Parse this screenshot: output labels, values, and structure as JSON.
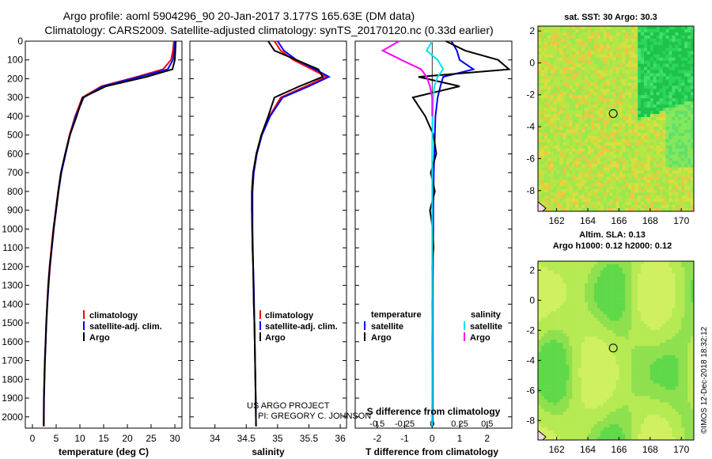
{
  "header": {
    "line1": "Argo profile: aoml 5904296_90 20-Jan-2017 3.177S 165.63E (DM data)",
    "line2": "Climatology: CARS2009. Satellite-adjusted climatology: synTS_20170120.nc (0.33d earlier)"
  },
  "credit": {
    "project": "US ARGO PROJECT",
    "pi": "PI: GREGORY C. JOHNSON",
    "imos": "©IMOS 12-Dec-2018 18:32:12"
  },
  "colors": {
    "climatology": "#ff0000",
    "satellite": "#0000ff",
    "argo": "#000000",
    "s_satellite": "#00e5ee",
    "s_argo": "#ff00ff"
  },
  "chart_data": [
    {
      "id": "temperature",
      "type": "line",
      "xlabel": "temperature (deg C)",
      "ylabel": "",
      "xlim": [
        -1.5,
        31.5
      ],
      "ylim": [
        2060,
        0
      ],
      "xticks": [
        0,
        5,
        10,
        15,
        20,
        25,
        30
      ],
      "xticklabels": [
        "0",
        "5",
        "10",
        "15",
        "20",
        "25",
        "30"
      ],
      "yticks": [
        0,
        100,
        200,
        300,
        400,
        500,
        600,
        700,
        800,
        900,
        1000,
        1100,
        1200,
        1300,
        1400,
        1500,
        1600,
        1700,
        1800,
        1900,
        2000
      ],
      "yticklabels": [
        "0",
        "100",
        "200",
        "300",
        "400",
        "500",
        "600",
        "700",
        "800",
        "900",
        "1000",
        "1100",
        "1200",
        "1300",
        "1400",
        "1500",
        "1600",
        "1700",
        "1800",
        "1900",
        "2000"
      ],
      "legend": {
        "position": "lower-center",
        "entries": [
          "climatology",
          "satellite-adj. clim.",
          "Argo"
        ]
      },
      "series": [
        {
          "name": "climatology",
          "color": "#ff0000",
          "x": [
            29.8,
            29.6,
            29.2,
            27.5,
            22.0,
            14.5,
            10.5,
            9.0,
            7.8,
            6.9,
            6.0,
            5.4,
            4.9,
            4.4,
            4.0,
            3.6,
            3.3,
            3.1,
            2.9,
            2.75,
            2.6,
            2.5,
            2.4,
            2.35
          ],
          "y": [
            0,
            50,
            100,
            150,
            190,
            240,
            300,
            400,
            500,
            600,
            700,
            800,
            900,
            1000,
            1100,
            1200,
            1300,
            1400,
            1500,
            1600,
            1700,
            1800,
            1900,
            2050
          ]
        },
        {
          "name": "satellite-adj. clim.",
          "color": "#0000ff",
          "x": [
            30.0,
            29.9,
            29.6,
            28.5,
            22.5,
            14.8,
            10.8,
            9.1,
            7.9,
            7.0,
            6.1,
            5.5,
            5.0,
            4.5,
            4.1,
            3.7,
            3.4,
            3.15,
            2.95,
            2.8,
            2.65,
            2.55,
            2.45,
            2.4
          ],
          "y": [
            0,
            50,
            100,
            150,
            190,
            240,
            300,
            400,
            500,
            600,
            700,
            800,
            900,
            1000,
            1100,
            1200,
            1300,
            1400,
            1500,
            1600,
            1700,
            1800,
            1900,
            2050
          ]
        },
        {
          "name": "Argo",
          "color": "#000000",
          "x": [
            30.2,
            30.1,
            30.0,
            29.5,
            24.0,
            15.5,
            10.6,
            9.3,
            7.9,
            6.9,
            6.0,
            5.45,
            4.95,
            4.45,
            4.05,
            3.65,
            3.35,
            3.12,
            2.92,
            2.78,
            2.62,
            2.52,
            2.42,
            2.38
          ],
          "y": [
            0,
            50,
            100,
            150,
            190,
            240,
            300,
            400,
            500,
            600,
            700,
            800,
            900,
            1000,
            1100,
            1200,
            1300,
            1400,
            1500,
            1600,
            1700,
            1800,
            1900,
            2050
          ]
        }
      ]
    },
    {
      "id": "salinity",
      "type": "line",
      "xlabel": "salinity",
      "ylabel": "",
      "xlim": [
        33.6,
        36.1
      ],
      "ylim": [
        2060,
        0
      ],
      "xticks": [
        34,
        34.5,
        35,
        35.5,
        36
      ],
      "xticklabels": [
        "34",
        "34.5",
        "35",
        "35.5",
        "36"
      ],
      "yticks": [
        0,
        100,
        200,
        300,
        400,
        500,
        600,
        700,
        800,
        900,
        1000,
        1100,
        1200,
        1300,
        1400,
        1500,
        1600,
        1700,
        1800,
        1900,
        2000
      ],
      "legend": {
        "position": "lower-center",
        "entries": [
          "climatology",
          "satellite-adj. clim.",
          "Argo"
        ]
      },
      "series": [
        {
          "name": "climatology",
          "color": "#ff0000",
          "x": [
            34.95,
            35.05,
            35.25,
            35.55,
            35.78,
            35.45,
            35.05,
            34.87,
            34.74,
            34.66,
            34.61,
            34.59,
            34.59,
            34.595,
            34.6,
            34.61,
            34.615,
            34.62,
            34.63,
            34.635,
            34.64,
            34.645,
            34.65,
            34.655
          ],
          "y": [
            0,
            50,
            100,
            150,
            190,
            240,
            300,
            400,
            500,
            600,
            700,
            800,
            900,
            1000,
            1100,
            1200,
            1300,
            1400,
            1500,
            1600,
            1700,
            1800,
            1900,
            2050
          ]
        },
        {
          "name": "satellite-adj. clim.",
          "color": "#0000ff",
          "x": [
            35.0,
            35.1,
            35.3,
            35.6,
            35.82,
            35.5,
            35.08,
            34.88,
            34.75,
            34.67,
            34.62,
            34.6,
            34.6,
            34.6,
            34.605,
            34.61,
            34.62,
            34.625,
            34.63,
            34.635,
            34.64,
            34.645,
            34.65,
            34.655
          ],
          "y": [
            0,
            50,
            100,
            150,
            190,
            240,
            300,
            400,
            500,
            600,
            700,
            800,
            900,
            1000,
            1100,
            1200,
            1300,
            1400,
            1500,
            1600,
            1700,
            1800,
            1900,
            2050
          ]
        },
        {
          "name": "Argo",
          "color": "#000000",
          "x": [
            34.85,
            34.95,
            35.3,
            35.65,
            35.72,
            35.35,
            34.95,
            34.85,
            34.74,
            34.66,
            34.61,
            34.59,
            34.59,
            34.595,
            34.6,
            34.61,
            34.615,
            34.62,
            34.63,
            34.635,
            34.64,
            34.645,
            34.65,
            34.655
          ],
          "y": [
            0,
            50,
            100,
            150,
            190,
            240,
            300,
            400,
            500,
            600,
            700,
            800,
            900,
            1000,
            1100,
            1200,
            1300,
            1400,
            1500,
            1600,
            1700,
            1800,
            1900,
            2050
          ]
        }
      ]
    },
    {
      "id": "difference",
      "type": "line",
      "xlabel": "T difference from climatology",
      "xlabel_top": "S difference from climatology",
      "xlim": [
        -2.8,
        2.9
      ],
      "ylim": [
        2060,
        0
      ],
      "xticks": [
        -2,
        -1,
        0,
        1,
        2
      ],
      "xticklabels": [
        "-2",
        "-1",
        "0",
        "1",
        "2"
      ],
      "s_ticks": [
        -0.5,
        -0.25,
        0,
        0.25,
        0.5
      ],
      "s_ticklabels": [
        "-0.5",
        "-0.25",
        "0",
        "0.25",
        "0.5"
      ],
      "s_scale": 4,
      "yticks": [
        0,
        100,
        200,
        300,
        400,
        500,
        600,
        700,
        800,
        900,
        1000,
        1100,
        1200,
        1300,
        1400,
        1500,
        1600,
        1700,
        1800,
        1900,
        2000
      ],
      "legend": {
        "position": "lower-center",
        "headers": [
          "temperature",
          "salinity"
        ],
        "entries": [
          "satellite",
          "Argo",
          "satellite",
          "Argo"
        ]
      },
      "series": [
        {
          "name": "T satellite",
          "color": "#0000ff",
          "x": [
            0.7,
            0.9,
            1.0,
            1.5,
            0.4,
            0.3,
            0.2,
            0.12,
            0.1,
            0.08,
            0.06,
            0.05,
            0.04,
            0.04,
            0.03,
            0.03,
            0.02,
            0.02,
            0.02,
            0.02,
            0.02,
            0.02
          ],
          "y": [
            0,
            50,
            100,
            150,
            190,
            240,
            300,
            400,
            500,
            600,
            700,
            800,
            900,
            1000,
            1100,
            1200,
            1300,
            1400,
            1500,
            1600,
            1800,
            2050
          ]
        },
        {
          "name": "T Argo",
          "color": "#000000",
          "x": [
            0.5,
            1.2,
            2.4,
            2.8,
            -0.5,
            1.0,
            -0.7,
            -0.25,
            0.05,
            0.15,
            -0.05,
            0.1,
            -0.08,
            0.02,
            0.05,
            0.0,
            0.02,
            0.0,
            0.01,
            0.0,
            0.01,
            0.0
          ],
          "y": [
            0,
            50,
            100,
            150,
            190,
            240,
            300,
            400,
            500,
            600,
            700,
            800,
            900,
            1000,
            1100,
            1200,
            1300,
            1400,
            1500,
            1600,
            1800,
            2050
          ]
        },
        {
          "name": "S satellite",
          "color": "#00e5ee",
          "x": [
            0.0,
            -0.05,
            0.05,
            0.1,
            0.05,
            0.02,
            0.01,
            0.005,
            0.002,
            0.0,
            0.0,
            0.0,
            0.0,
            0.0,
            0.0,
            0.0,
            0.0,
            0.0,
            0.0,
            0.0,
            0.0,
            0.0
          ],
          "y": [
            0,
            50,
            100,
            150,
            190,
            240,
            300,
            400,
            500,
            600,
            700,
            800,
            900,
            1000,
            1100,
            1200,
            1300,
            1400,
            1500,
            1600,
            1800,
            2050
          ]
        },
        {
          "name": "S Argo",
          "color": "#ff00ff",
          "x": [
            -0.3,
            -0.45,
            -0.28,
            -0.1,
            -0.05,
            -0.02,
            0.0,
            0.0
          ],
          "y": [
            0,
            50,
            100,
            150,
            190,
            240,
            300,
            400
          ]
        }
      ]
    },
    {
      "id": "sst_map",
      "type": "heatmap",
      "title": "sat. SST: 30 Argo: 30.3",
      "xlim": [
        160.8,
        170.8
      ],
      "ylim": [
        -9.3,
        2.3
      ],
      "xticks": [
        162,
        164,
        166,
        168,
        170
      ],
      "xticklabels": [
        "162",
        "164",
        "166",
        "168",
        "170"
      ],
      "yticks": [
        2,
        0,
        -2,
        -4,
        -6,
        -8
      ],
      "yticklabels": [
        "2",
        "0",
        "-2",
        "-4",
        "-6",
        "-8"
      ],
      "marker": {
        "lon": 165.63,
        "lat": -3.177
      }
    },
    {
      "id": "sla_map",
      "type": "heatmap",
      "title_line1": "Altim. SLA: 0.13",
      "title_line2": "Argo h1000: 0.12 h2000: 0.12",
      "xlim": [
        160.8,
        170.8
      ],
      "ylim": [
        -9.3,
        2.6
      ],
      "xticks": [
        162,
        164,
        166,
        168,
        170
      ],
      "xticklabels": [
        "162",
        "164",
        "166",
        "168",
        "170"
      ],
      "yticks": [
        2,
        0,
        -2,
        -4,
        -6,
        -8
      ],
      "yticklabels": [
        "2",
        "0",
        "-2",
        "-4",
        "-6",
        "-8"
      ],
      "marker": {
        "lon": 165.63,
        "lat": -3.177
      }
    }
  ],
  "legends": {
    "t_entries": [
      "climatology",
      "satellite-adj. clim.",
      "Argo"
    ],
    "s_entries": [
      "climatology",
      "satellite-adj. clim.",
      "Argo"
    ],
    "d_temperature": "temperature",
    "d_salinity": "salinity",
    "d_t_sat": "satellite",
    "d_t_argo": "Argo",
    "d_s_sat": "satellite",
    "d_s_argo": "Argo"
  }
}
